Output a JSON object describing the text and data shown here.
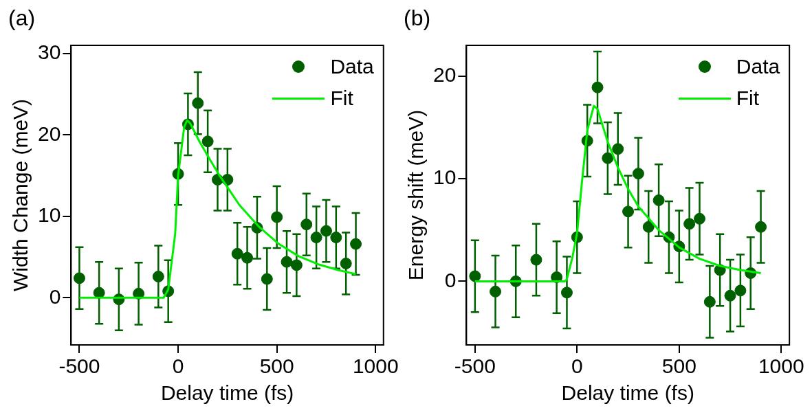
{
  "chart_data": [
    {
      "type": "scatter",
      "xlabel": "Delay time (fs)",
      "ylabel": "Width Change (meV)",
      "annotations": [
        "(a)"
      ],
      "xlim": [
        -542,
        1040
      ],
      "ylim": [
        -5.8,
        31
      ],
      "xticks": [
        -500,
        0,
        500,
        1000
      ],
      "yticks": [
        0,
        10,
        20,
        30
      ],
      "grid": false,
      "legend": "top right",
      "series": [
        {
          "name": "Data",
          "type": "scatter",
          "marker": "circle",
          "color": "#006000",
          "x": [
            -500,
            -400,
            -300,
            -200,
            -100,
            -50,
            0,
            50,
            100,
            150,
            200,
            250,
            300,
            350,
            400,
            450,
            500,
            550,
            600,
            650,
            700,
            750,
            800,
            850,
            900
          ],
          "values": [
            2.4,
            0.6,
            -0.2,
            0.5,
            2.6,
            0.8,
            15.2,
            21.3,
            23.9,
            19.2,
            14.5,
            14.5,
            5.4,
            4.9,
            8.6,
            2.3,
            9.9,
            4.4,
            4.0,
            9.0,
            7.4,
            8.2,
            7.4,
            4.2,
            6.6
          ],
          "errors": [
            3.8,
            3.8,
            3.8,
            3.8,
            3.8,
            3.8,
            3.8,
            3.8,
            3.8,
            3.8,
            3.8,
            3.8,
            3.8,
            3.8,
            3.8,
            3.8,
            3.8,
            3.8,
            3.8,
            3.8,
            3.8,
            3.8,
            3.8,
            3.8,
            3.8
          ]
        },
        {
          "name": "Fit",
          "type": "line",
          "marker": "none",
          "line_style": "solid",
          "color": "#00ee00",
          "x": [
            -500,
            -73,
            -50,
            -15,
            0,
            31,
            46,
            62,
            110,
            160,
            210,
            260,
            310,
            410,
            510,
            610,
            710,
            810,
            900
          ],
          "values": [
            0,
            0,
            1.0,
            7.8,
            15,
            21,
            21.8,
            21.4,
            19.1,
            17.0,
            15.0,
            13.2,
            11.4,
            8.7,
            6.6,
            5.1,
            4.1,
            3.4,
            2.9
          ]
        }
      ]
    },
    {
      "type": "scatter",
      "xlabel": "Delay time (fs)",
      "ylabel": "Energy shift (meV)",
      "annotations": [
        "(b)"
      ],
      "xlim": [
        -542,
        1040
      ],
      "ylim": [
        -6.2,
        23
      ],
      "xticks": [
        -500,
        0,
        500,
        1000
      ],
      "yticks": [
        0,
        10,
        20
      ],
      "grid": false,
      "legend": "top right",
      "series": [
        {
          "name": "Data",
          "type": "scatter",
          "marker": "circle",
          "color": "#006000",
          "x": [
            -500,
            -400,
            -300,
            -200,
            -100,
            -50,
            0,
            50,
            100,
            150,
            200,
            250,
            300,
            350,
            400,
            450,
            500,
            550,
            600,
            650,
            700,
            750,
            800,
            850,
            900
          ],
          "values": [
            0.5,
            -1.0,
            0.0,
            2.1,
            0.4,
            -1.1,
            4.3,
            13.7,
            18.9,
            12.0,
            12.9,
            6.8,
            10.5,
            5.3,
            7.9,
            4.3,
            3.4,
            5.6,
            6.1,
            -2.0,
            1.1,
            -1.4,
            -0.9,
            0.8,
            5.3
          ],
          "errors": [
            3.5,
            3.5,
            3.5,
            3.5,
            3.5,
            3.5,
            3.5,
            3.5,
            3.5,
            3.5,
            3.5,
            3.5,
            3.5,
            3.5,
            3.5,
            3.5,
            3.5,
            3.5,
            3.5,
            3.5,
            3.5,
            3.5,
            3.5,
            3.5,
            3.5
          ]
        },
        {
          "name": "Fit",
          "type": "line",
          "marker": "none",
          "line_style": "solid",
          "color": "#00ee00",
          "x": [
            -500,
            -60,
            -50,
            -22,
            0,
            23,
            50,
            82,
            100,
            150,
            200,
            250,
            300,
            400,
            500,
            600,
            700,
            800,
            900
          ],
          "values": [
            0,
            0,
            0.2,
            2.4,
            4.7,
            9.5,
            14.7,
            17.1,
            16.8,
            13.6,
            11.1,
            9.0,
            7.3,
            5.0,
            3.3,
            2.2,
            1.5,
            1.1,
            0.8
          ]
        }
      ]
    }
  ]
}
